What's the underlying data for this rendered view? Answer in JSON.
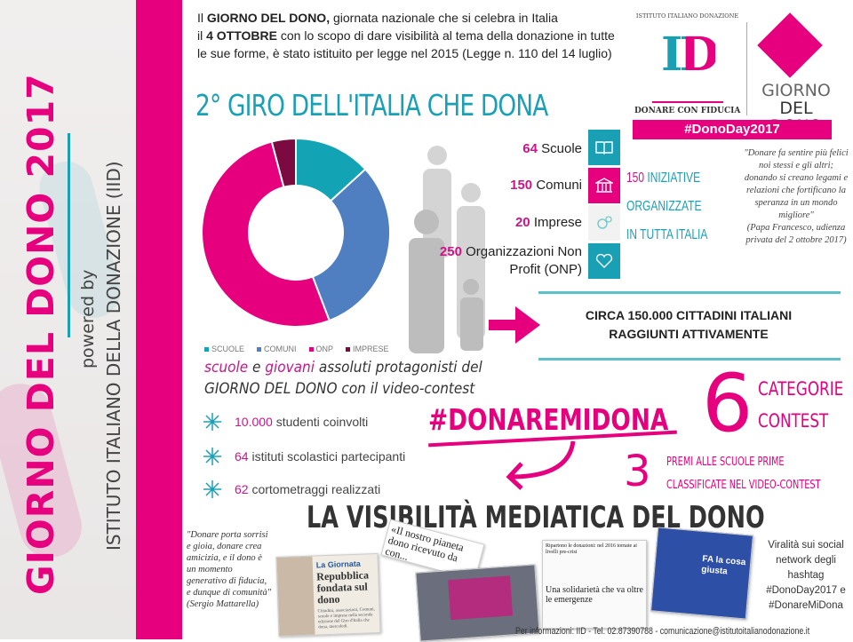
{
  "sidebar": {
    "title": "GIORNO DEL DONO 2017",
    "powered_by": "powered by",
    "organization": "ISTITUTO ITALIANO DELLA DONAZIONE (IID)"
  },
  "intro": {
    "p1_bold": "GIORNO DEL DONO,",
    "p1_pre": "Il",
    "p1_rest": "giornata nazionale che si celebra in Italia",
    "p2_pre": "il",
    "p2_bold": "4 OTTOBRE",
    "p2_rest": "con lo scopo di dare visibilità al tema della donazione in tutte le sue forme",
    "p3": ", è stato istituito per legge nel 2015 (Legge n. 110 del 14 luglio)"
  },
  "logos": {
    "iid_arc": "ISTITUTO ITALIANO DONAZIONE",
    "iid_letters": "ID",
    "iid_tagline": "DONARE CON FIDUCIA",
    "gdd_line1": "GIORNO",
    "gdd_line2": "DEL DONO",
    "hashtag": "#DonoDay2017"
  },
  "section_title": "2° GIRO DELL'ITALIA CHE DONA",
  "chart_data": {
    "type": "pie",
    "donut": true,
    "categories": [
      "SCUOLE",
      "COMUNI",
      "ONP",
      "IMPRESE"
    ],
    "values": [
      64,
      150,
      250,
      20
    ],
    "colors": [
      "#12a3b4",
      "#4f7fc0",
      "#e6007e",
      "#7a0a3f"
    ],
    "legend": "bottom"
  },
  "stats": [
    {
      "num": "64",
      "label": "Scuole",
      "icon": "book-icon",
      "color": "#1aa0b5"
    },
    {
      "num": "150",
      "label": "Comuni",
      "icon": "town-hall-icon",
      "color": "#e6007e"
    },
    {
      "num": "20",
      "label": "Imprese",
      "icon": "gears-icon",
      "color": "#f2f2f2"
    },
    {
      "num": "250",
      "label": "Organizzazioni Non Profit (ONP)",
      "icon": "heart-icon",
      "color": "#1aa0b5"
    }
  ],
  "initiatives": {
    "num": "150",
    "line1": "INIZIATIVE",
    "line2": "ORGANIZZATE",
    "line3": "IN TUTTA ITALIA"
  },
  "pope_quote": {
    "text": "\"Donare fa sentire più felici noi stessi e gli altri; donando si creano legami e relazioni che fortificano la speranza in un mondo migliore\"",
    "source": "(Papa Francesco, udienza privata del 2 ottobre 2017)"
  },
  "reach": {
    "line1": "CIRCA 150.000 CITTADINI ITALIANI",
    "line2": "RAGGIUNTI ATTIVAMENTE"
  },
  "contest": {
    "w1": "scuole",
    "w2": "e",
    "w3": "giovani",
    "w4": "assoluti protagonisti del",
    "line2": "GIORNO DEL DONO con il video-contest",
    "bullets": [
      {
        "num": "10.000",
        "text": "studenti coinvolti"
      },
      {
        "num": "64",
        "text": "istituti scolastici partecipanti"
      },
      {
        "num": "62",
        "text": "cortometraggi realizzati"
      }
    ],
    "hashtag": "#DONAREMIDONA",
    "categories_num": "6",
    "categories_l1": "CATEGORIE",
    "categories_l2": "CONTEST",
    "prizes_num": "3",
    "prizes_l1": "PREMI ALLE SCUOLE PRIME",
    "prizes_l2": "CLASSIFICATE NEL VIDEO-CONTEST"
  },
  "media": {
    "title": "LA VISIBILITÀ MEDIATICA DEL DONO",
    "quote": "\"Donare porta sorrisi e gioia, donare crea amicizia, e il dono è un momento generativo di fiducia, e dunque di comunità\"",
    "quote_source": "(Sergio Mattarella)",
    "clip1_kicker": "La Giornata",
    "clip1_title": "Repubblica fondata sul dono",
    "clip1_body": "Cittadini, associazioni, Comuni, scuole e imprese nella seconda edizione del Giro d'Italia che dona, mercoledì.",
    "clip2_title": "«Il nostro pianeta dono ricevuto da con...",
    "clip3_head": "Ripartono le donazioni: nel 2016 tornate ai livelli pre-crisi",
    "clip3_title": "Una solidarietà che va oltre le emergenze",
    "clip4_tv": "FA la cosa giusta",
    "viral": "Viralità sui social network degli hashtag #DonoDay2017 e #DonareMiDona"
  },
  "footer": "Per informazioni: IID - Tel. 02.87390788 - comunicazione@istitutoitalianodonazione.it"
}
